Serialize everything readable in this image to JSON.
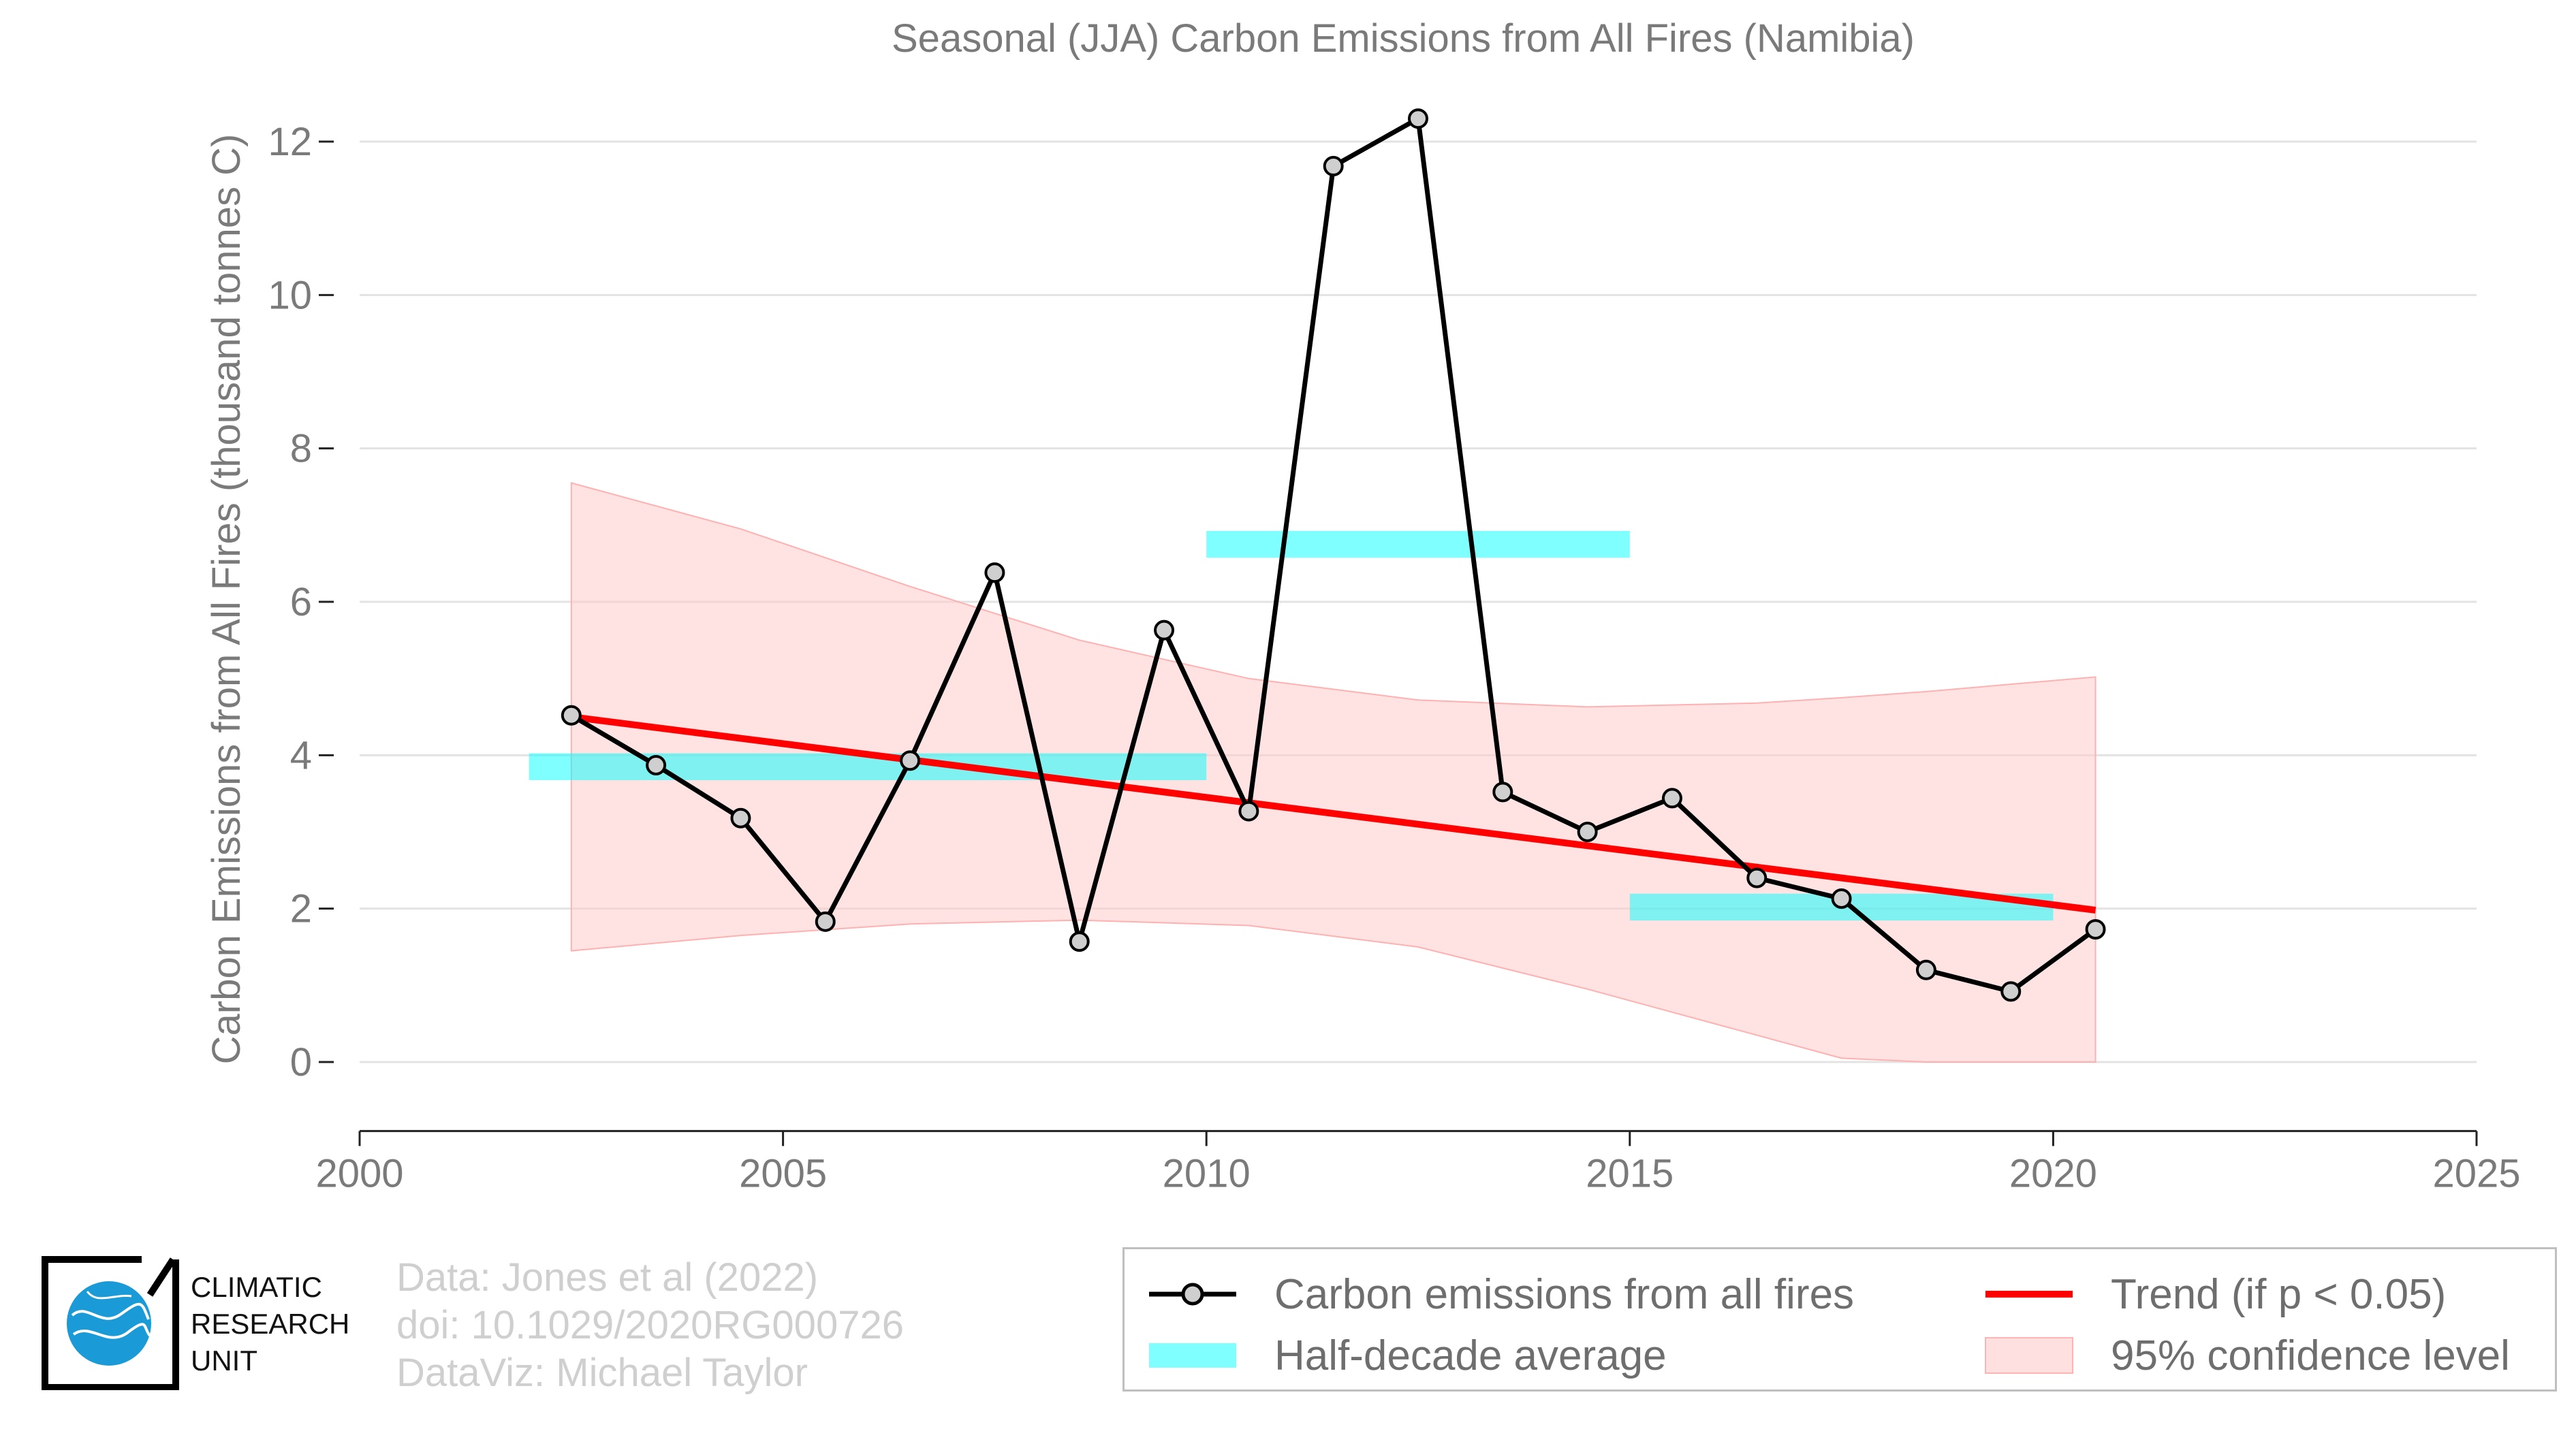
{
  "chart_data": {
    "type": "line",
    "title": "Seasonal (JJA) Carbon Emissions from All Fires (Namibia)",
    "xlabel": "",
    "ylabel": "Carbon Emissions from All Fires (thousand tonnes C)",
    "xlim": [
      2000,
      2025
    ],
    "ylim": [
      -0.9,
      12.8
    ],
    "xticks": [
      2000,
      2005,
      2010,
      2015,
      2020,
      2025
    ],
    "yticks": [
      0,
      2,
      4,
      6,
      8,
      10,
      12
    ],
    "grid": "horizontal",
    "legend_position": "bottom-right",
    "series": [
      {
        "name": "Carbon emissions from all fires",
        "kind": "line-markers",
        "color": "#000000",
        "x": [
          2002.5,
          2003.5,
          2004.5,
          2005.5,
          2006.5,
          2007.5,
          2008.5,
          2009.5,
          2010.5,
          2011.5,
          2012.5,
          2013.5,
          2014.5,
          2015.5,
          2016.5,
          2017.5,
          2018.5,
          2019.5,
          2020.5
        ],
        "y": [
          4.52,
          3.87,
          3.18,
          1.83,
          3.93,
          6.38,
          1.57,
          5.63,
          3.27,
          11.68,
          12.3,
          3.52,
          3.0,
          3.44,
          2.4,
          2.13,
          1.2,
          0.92,
          1.73
        ]
      },
      {
        "name": "Half-decade average",
        "kind": "bars",
        "color": "#00ffff",
        "segments": [
          {
            "x0": 2002.0,
            "x1": 2010.0,
            "y": 3.85
          },
          {
            "x0": 2010.0,
            "x1": 2015.0,
            "y": 6.75
          },
          {
            "x0": 2015.0,
            "x1": 2020.0,
            "y": 2.02
          }
        ]
      },
      {
        "name": "Trend (if p < 0.05)",
        "kind": "line",
        "color": "#ff0000",
        "x": [
          2002.5,
          2020.5
        ],
        "y": [
          4.5,
          1.98
        ]
      },
      {
        "name": "95% confidence level",
        "kind": "band",
        "color": "#ffcccc",
        "x": [
          2002.5,
          2004.5,
          2006.5,
          2008.5,
          2010.5,
          2012.5,
          2014.5,
          2016.5,
          2017.5,
          2018.5,
          2020.5
        ],
        "upper": [
          7.55,
          6.95,
          6.2,
          5.5,
          5.0,
          4.72,
          4.63,
          4.68,
          4.75,
          4.83,
          5.02
        ],
        "lower": [
          1.45,
          1.65,
          1.8,
          1.85,
          1.78,
          1.5,
          0.95,
          0.35,
          0.05,
          0.0,
          0.0
        ]
      }
    ]
  },
  "legend": {
    "items": [
      "Carbon emissions from all fires",
      "Trend (if p < 0.05)",
      "Half-decade average",
      "95% confidence level"
    ]
  },
  "credits": {
    "line1": "Data: Jones et al (2022)",
    "line2": "doi: 10.1029/2020RG000726",
    "line3": "DataViz: Michael Taylor"
  },
  "logo": {
    "line1": "CLIMATIC",
    "line2": "RESEARCH",
    "line3": "UNIT"
  }
}
